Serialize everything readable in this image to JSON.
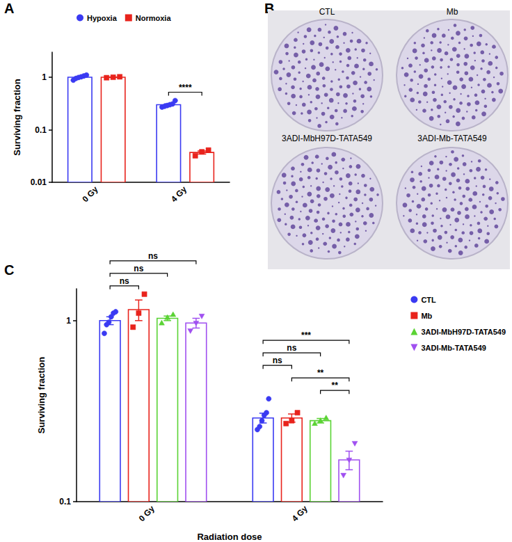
{
  "chart_data": [
    {
      "panel": "A",
      "type": "bar",
      "categories": [
        "0 Gy",
        "4 Gy"
      ],
      "y_label": "Surviving fraction",
      "log": "y",
      "ylim": [
        0.01,
        3
      ],
      "yticks": [
        0.01,
        0.1,
        1
      ],
      "grid": false,
      "legend": "top",
      "series": [
        {
          "name": "Hypoxia",
          "color": "#3a3af2",
          "marker": "circle",
          "values": [
            1.0,
            0.3
          ],
          "errors": [
            0.035,
            0.012
          ],
          "points": [
            [
              0.88,
              0.95,
              0.99,
              1.02,
              1.06,
              1.1
            ],
            [
              0.27,
              0.28,
              0.29,
              0.3,
              0.31,
              0.36
            ]
          ]
        },
        {
          "name": "Normoxia",
          "color": "#e8231c",
          "marker": "square",
          "values": [
            1.0,
            0.037
          ],
          "errors": [
            0.01,
            0.0025
          ],
          "points": [
            [
              0.98,
              1.0,
              1.02
            ],
            [
              0.032,
              0.038,
              0.041
            ]
          ]
        }
      ],
      "comparisons": [
        {
          "category": "4 Gy",
          "pair": [
            "Hypoxia",
            "Normoxia"
          ],
          "label": "****"
        }
      ]
    },
    {
      "panel": "B",
      "type": "image",
      "labels": [
        "CTL",
        "Mb",
        "3ADI-MbH97D-TATA549",
        "3ADI-Mb-TATA549"
      ]
    },
    {
      "panel": "C",
      "type": "bar",
      "categories": [
        "0 Gy",
        "4 Gy"
      ],
      "x_label": "Radiation dose",
      "y_label": "Surviving fraction",
      "log": "y",
      "ylim": [
        0.1,
        1.5
      ],
      "yticks": [
        0.1,
        1
      ],
      "grid": false,
      "legend": "right",
      "series": [
        {
          "name": "CTL",
          "color": "#3a3af2",
          "marker": "circle",
          "values": [
            1.0,
            0.29
          ],
          "errors": [
            0.05,
            0.018
          ],
          "points": [
            [
              0.85,
              0.95,
              0.98,
              1.05,
              1.1,
              1.12
            ],
            [
              0.25,
              0.26,
              0.28,
              0.3,
              0.31,
              0.37
            ]
          ]
        },
        {
          "name": "Mb",
          "color": "#e8231c",
          "marker": "square",
          "values": [
            1.15,
            0.29
          ],
          "errors": [
            0.15,
            0.015
          ],
          "points": [
            [
              0.92,
              1.1,
              1.4
            ],
            [
              0.27,
              0.28,
              0.31
            ]
          ]
        },
        {
          "name": "3ADI-MbH97D-TATA549",
          "color": "#5ad334",
          "marker": "triangle",
          "values": [
            1.03,
            0.28
          ],
          "errors": [
            0.03,
            0.008
          ],
          "points": [
            [
              0.97,
              1.04,
              1.08
            ],
            [
              0.27,
              0.28,
              0.29
            ]
          ]
        },
        {
          "name": "3ADI-Mb-TATA549",
          "color": "#a050f0",
          "marker": "triangle-down",
          "values": [
            0.97,
            0.17
          ],
          "errors": [
            0.06,
            0.02
          ],
          "points": [
            [
              0.88,
              0.97,
              1.06
            ],
            [
              0.14,
              0.17,
              0.21
            ]
          ]
        }
      ],
      "comparisons": [
        {
          "category": "0 Gy",
          "pair": [
            "CTL",
            "Mb"
          ],
          "label": "ns"
        },
        {
          "category": "0 Gy",
          "pair": [
            "CTL",
            "3ADI-MbH97D-TATA549"
          ],
          "label": "ns"
        },
        {
          "category": "0 Gy",
          "pair": [
            "CTL",
            "3ADI-Mb-TATA549"
          ],
          "label": "ns"
        },
        {
          "category": "4 Gy",
          "pair": [
            "3ADI-MbH97D-TATA549",
            "3ADI-Mb-TATA549"
          ],
          "label": "**"
        },
        {
          "category": "4 Gy",
          "pair": [
            "Mb",
            "3ADI-Mb-TATA549"
          ],
          "label": "**"
        },
        {
          "category": "4 Gy",
          "pair": [
            "CTL",
            "Mb"
          ],
          "label": "ns"
        },
        {
          "category": "4 Gy",
          "pair": [
            "CTL",
            "3ADI-MbH97D-TATA549"
          ],
          "label": "ns"
        },
        {
          "category": "4 Gy",
          "pair": [
            "CTL",
            "3ADI-Mb-TATA549"
          ],
          "label": "***"
        }
      ]
    }
  ]
}
